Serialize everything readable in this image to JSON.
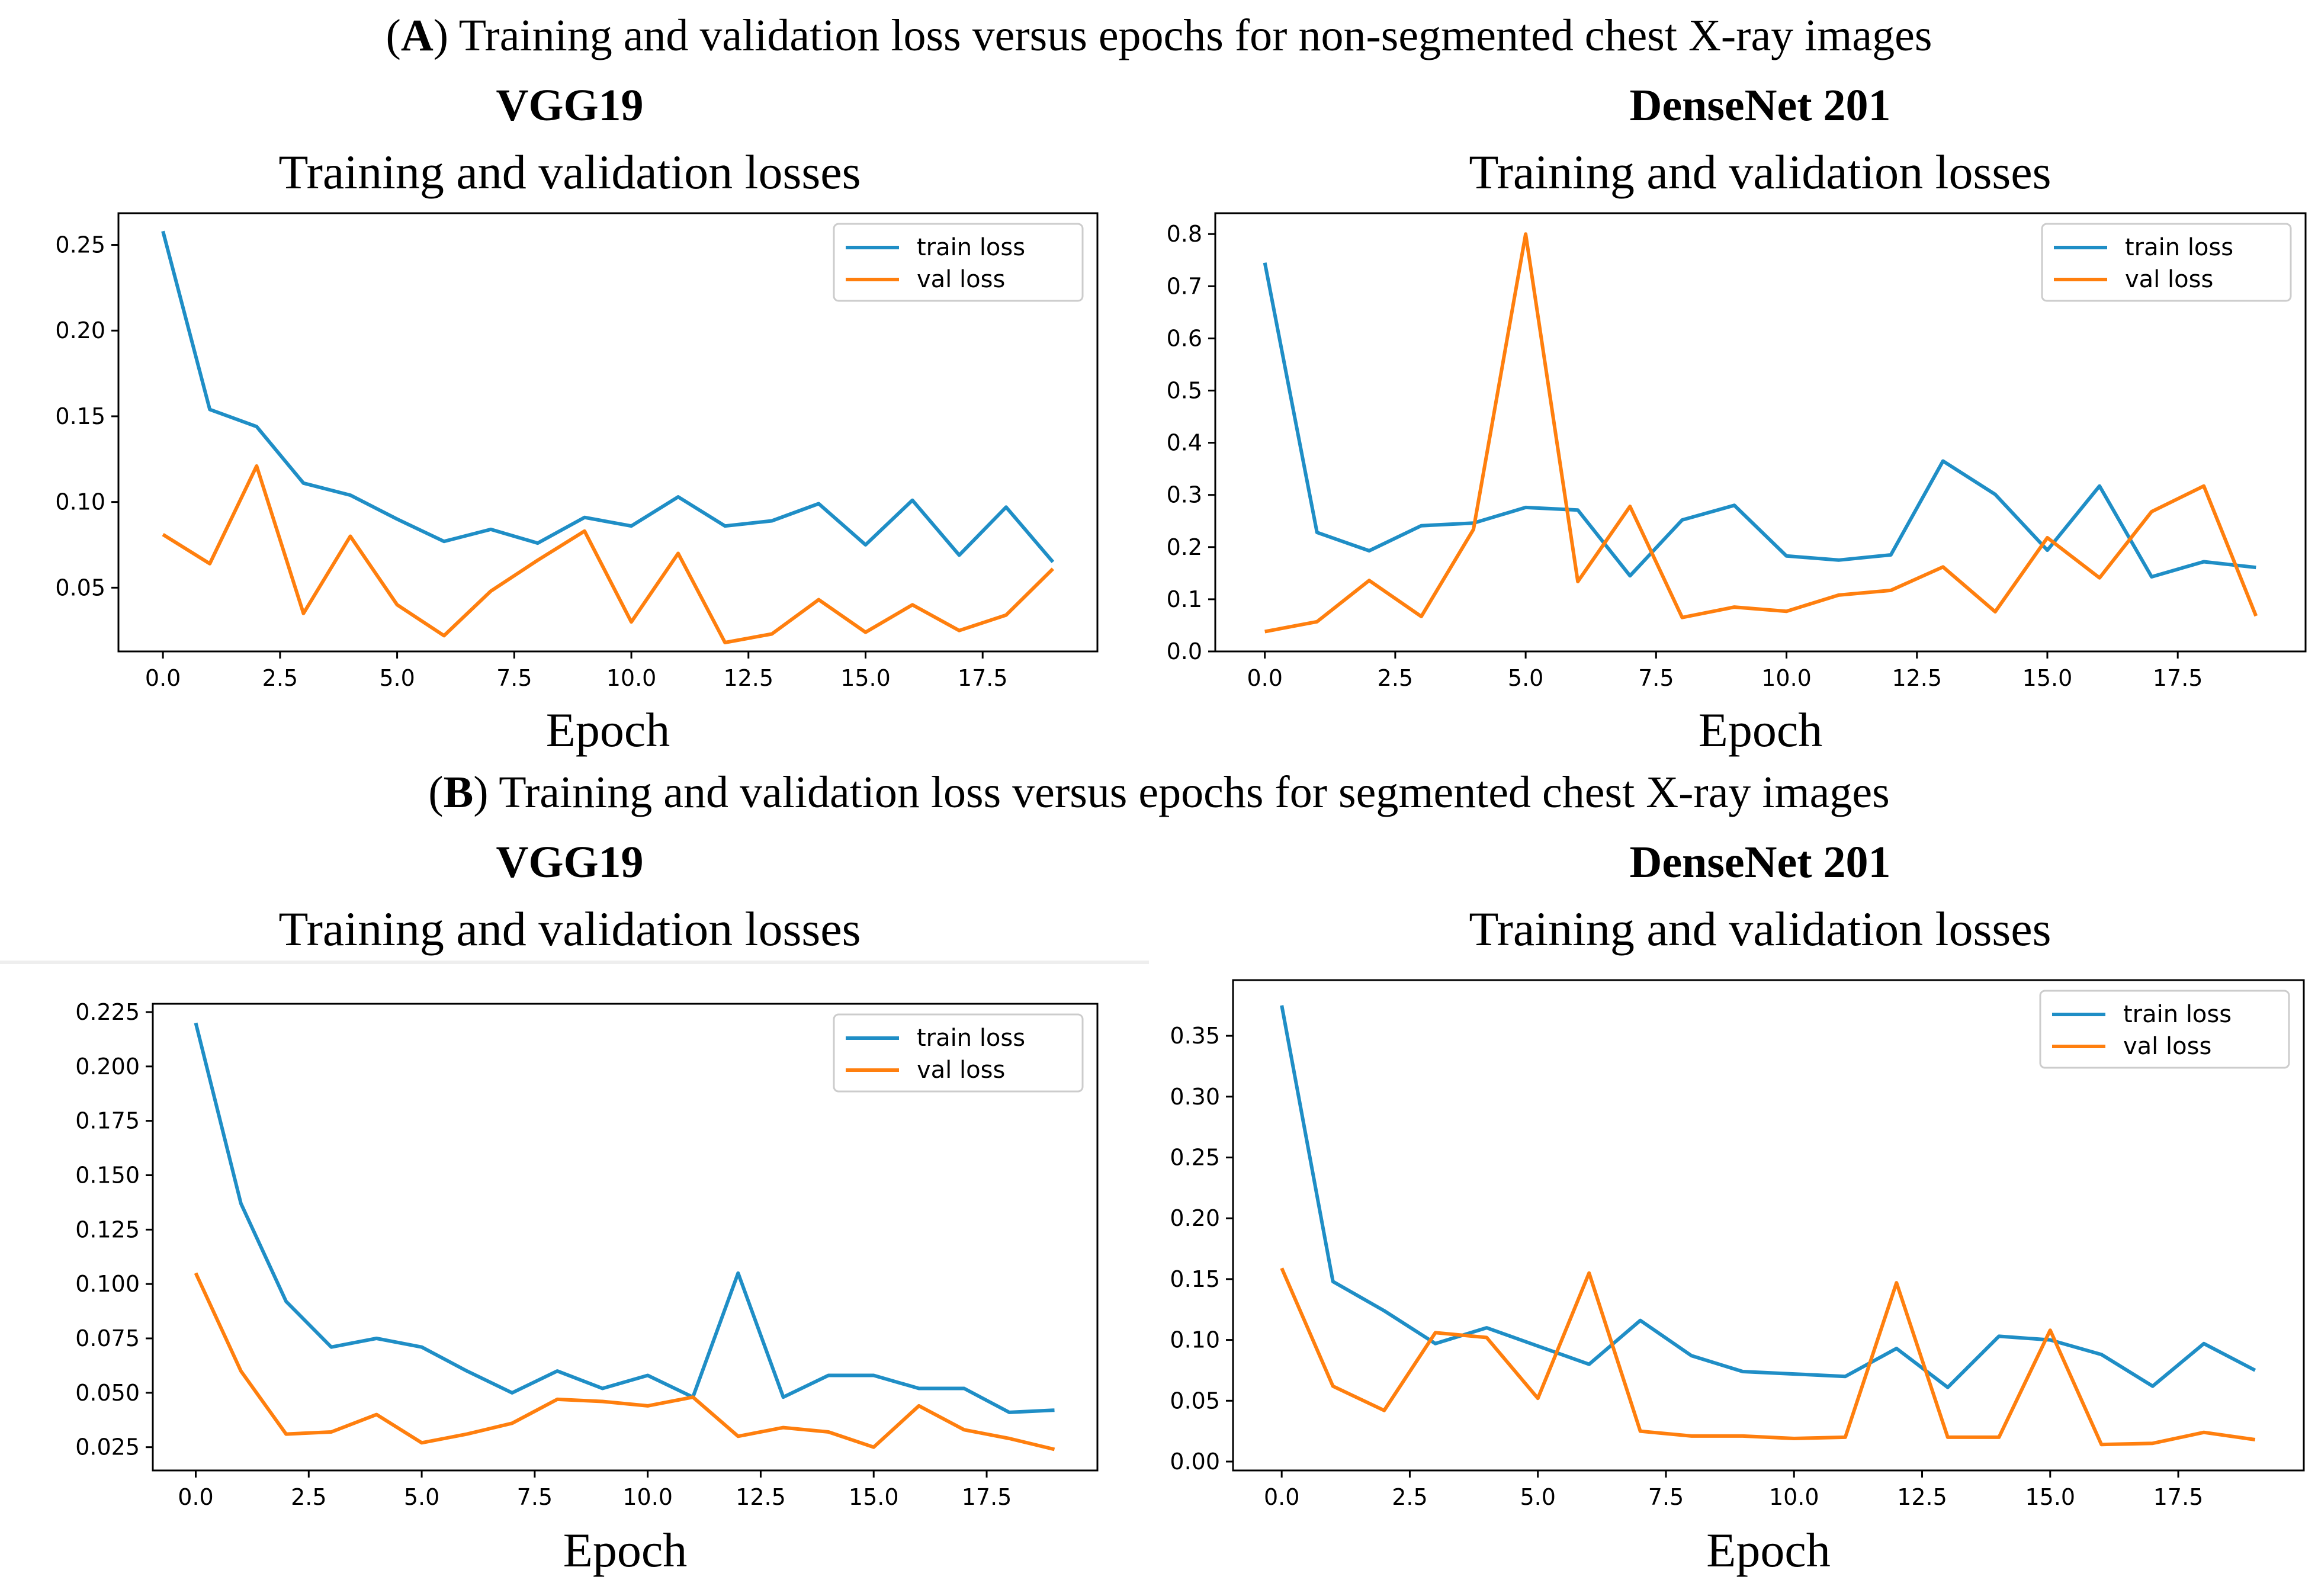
{
  "sections": [
    {
      "letter": "A",
      "text": ") Training and validation loss versus epochs for non-segmented chest X-ray images"
    },
    {
      "letter": "B",
      "text": ") Training and validation loss versus epochs for segmented chest X-ray images"
    }
  ],
  "colors": {
    "train": "#1f8ec6",
    "val": "#ff7f0e",
    "axis": "#000000"
  },
  "chart_data": [
    {
      "type": "line",
      "model": "VGG19",
      "title": "Training and validation losses",
      "xlabel": "Epoch",
      "ylabel": "",
      "xlim": [
        -0.95,
        19.95
      ],
      "ylim": [
        0.0128,
        0.2685
      ],
      "xticks": [
        0,
        2.5,
        5,
        7.5,
        10,
        12.5,
        15,
        17.5
      ],
      "xtick_labels": [
        "0.0",
        "2.5",
        "5.0",
        "7.5",
        "10.0",
        "12.5",
        "15.0",
        "17.5"
      ],
      "yticks": [
        0.05,
        0.1,
        0.15,
        0.2,
        0.25
      ],
      "ytick_labels": [
        "0.05",
        "0.10",
        "0.15",
        "0.20",
        "0.25"
      ],
      "legend": "top-right",
      "x": [
        0,
        1,
        2,
        3,
        4,
        5,
        6,
        7,
        8,
        9,
        10,
        11,
        12,
        13,
        14,
        15,
        16,
        17,
        18,
        19
      ],
      "series": [
        {
          "name": "train loss",
          "values": [
            0.258,
            0.154,
            0.144,
            0.111,
            0.104,
            0.09,
            0.077,
            0.084,
            0.076,
            0.091,
            0.086,
            0.103,
            0.086,
            0.089,
            0.099,
            0.075,
            0.101,
            0.069,
            0.097,
            0.065
          ]
        },
        {
          "name": "val loss",
          "values": [
            0.081,
            0.064,
            0.121,
            0.035,
            0.08,
            0.04,
            0.022,
            0.048,
            0.066,
            0.083,
            0.03,
            0.07,
            0.018,
            0.023,
            0.043,
            0.024,
            0.04,
            0.025,
            0.034,
            0.061
          ]
        }
      ]
    },
    {
      "type": "line",
      "model": "DenseNet 201",
      "title": "Training and validation losses",
      "xlabel": "Epoch",
      "ylabel": "",
      "xlim": [
        -0.95,
        19.95
      ],
      "ylim": [
        0.0,
        0.84
      ],
      "xticks": [
        0,
        2.5,
        5,
        7.5,
        10,
        12.5,
        15,
        17.5
      ],
      "xtick_labels": [
        "0.0",
        "2.5",
        "5.0",
        "7.5",
        "10.0",
        "12.5",
        "15.0",
        "17.5"
      ],
      "yticks": [
        0.0,
        0.1,
        0.2,
        0.3,
        0.4,
        0.5,
        0.6,
        0.7,
        0.8
      ],
      "ytick_labels": [
        "0.0",
        "0.1",
        "0.2",
        "0.3",
        "0.4",
        "0.5",
        "0.6",
        "0.7",
        "0.8"
      ],
      "legend": "top-right",
      "x": [
        0,
        1,
        2,
        3,
        4,
        5,
        6,
        7,
        8,
        9,
        10,
        11,
        12,
        13,
        14,
        15,
        16,
        17,
        18,
        19
      ],
      "series": [
        {
          "name": "train loss",
          "values": [
            0.745,
            0.228,
            0.193,
            0.241,
            0.246,
            0.276,
            0.271,
            0.145,
            0.252,
            0.28,
            0.183,
            0.175,
            0.185,
            0.365,
            0.301,
            0.194,
            0.317,
            0.143,
            0.172,
            0.161
          ]
        },
        {
          "name": "val loss",
          "values": [
            0.038,
            0.057,
            0.136,
            0.067,
            0.234,
            0.8,
            0.134,
            0.278,
            0.065,
            0.085,
            0.077,
            0.108,
            0.117,
            0.162,
            0.076,
            0.218,
            0.141,
            0.268,
            0.317,
            0.068
          ]
        }
      ]
    },
    {
      "type": "line",
      "model": "VGG19",
      "title": "Training and validation losses",
      "xlabel": "Epoch",
      "ylabel": "",
      "xlim": [
        -0.95,
        19.95
      ],
      "ylim": [
        0.0143,
        0.2288
      ],
      "xticks": [
        0,
        2.5,
        5,
        7.5,
        10,
        12.5,
        15,
        17.5
      ],
      "xtick_labels": [
        "0.0",
        "2.5",
        "5.0",
        "7.5",
        "10.0",
        "12.5",
        "15.0",
        "17.5"
      ],
      "yticks": [
        0.025,
        0.05,
        0.075,
        0.1,
        0.125,
        0.15,
        0.175,
        0.2,
        0.225
      ],
      "ytick_labels": [
        "0.025",
        "0.050",
        "0.075",
        "0.100",
        "0.125",
        "0.150",
        "0.175",
        "0.200",
        "0.225"
      ],
      "legend": "top-right",
      "x": [
        0,
        1,
        2,
        3,
        4,
        5,
        6,
        7,
        8,
        9,
        10,
        11,
        12,
        13,
        14,
        15,
        16,
        17,
        18,
        19
      ],
      "series": [
        {
          "name": "train loss",
          "values": [
            0.22,
            0.137,
            0.092,
            0.071,
            0.075,
            0.071,
            0.06,
            0.05,
            0.06,
            0.052,
            0.058,
            0.048,
            0.105,
            0.048,
            0.058,
            0.058,
            0.052,
            0.052,
            0.041,
            0.042
          ]
        },
        {
          "name": "val loss",
          "values": [
            0.105,
            0.06,
            0.031,
            0.032,
            0.04,
            0.027,
            0.031,
            0.036,
            0.047,
            0.046,
            0.044,
            0.048,
            0.03,
            0.034,
            0.032,
            0.025,
            0.044,
            0.033,
            0.029,
            0.024
          ]
        }
      ]
    },
    {
      "type": "line",
      "model": "DenseNet 201",
      "title": "Training and validation losses",
      "xlabel": "Epoch",
      "ylabel": "",
      "xlim": [
        -0.95,
        19.95
      ],
      "ylim": [
        -0.0073,
        0.3958
      ],
      "xticks": [
        0,
        2.5,
        5,
        7.5,
        10,
        12.5,
        15,
        17.5
      ],
      "xtick_labels": [
        "0.0",
        "2.5",
        "5.0",
        "7.5",
        "10.0",
        "12.5",
        "15.0",
        "17.5"
      ],
      "yticks": [
        0.0,
        0.05,
        0.1,
        0.15,
        0.2,
        0.25,
        0.3,
        0.35
      ],
      "ytick_labels": [
        "0.00",
        "0.05",
        "0.10",
        "0.15",
        "0.20",
        "0.25",
        "0.30",
        "0.35"
      ],
      "legend": "top-right",
      "x": [
        0,
        1,
        2,
        3,
        4,
        5,
        6,
        7,
        8,
        9,
        10,
        11,
        12,
        13,
        14,
        15,
        16,
        17,
        18,
        19
      ],
      "series": [
        {
          "name": "train loss",
          "values": [
            0.375,
            0.148,
            0.124,
            0.097,
            0.11,
            0.095,
            0.08,
            0.116,
            0.087,
            0.074,
            0.072,
            0.07,
            0.093,
            0.061,
            0.103,
            0.1,
            0.088,
            0.062,
            0.097,
            0.075
          ]
        },
        {
          "name": "val loss",
          "values": [
            0.159,
            0.062,
            0.042,
            0.106,
            0.102,
            0.052,
            0.155,
            0.025,
            0.021,
            0.021,
            0.019,
            0.02,
            0.147,
            0.02,
            0.02,
            0.108,
            0.014,
            0.015,
            0.024,
            0.018
          ]
        }
      ]
    }
  ]
}
